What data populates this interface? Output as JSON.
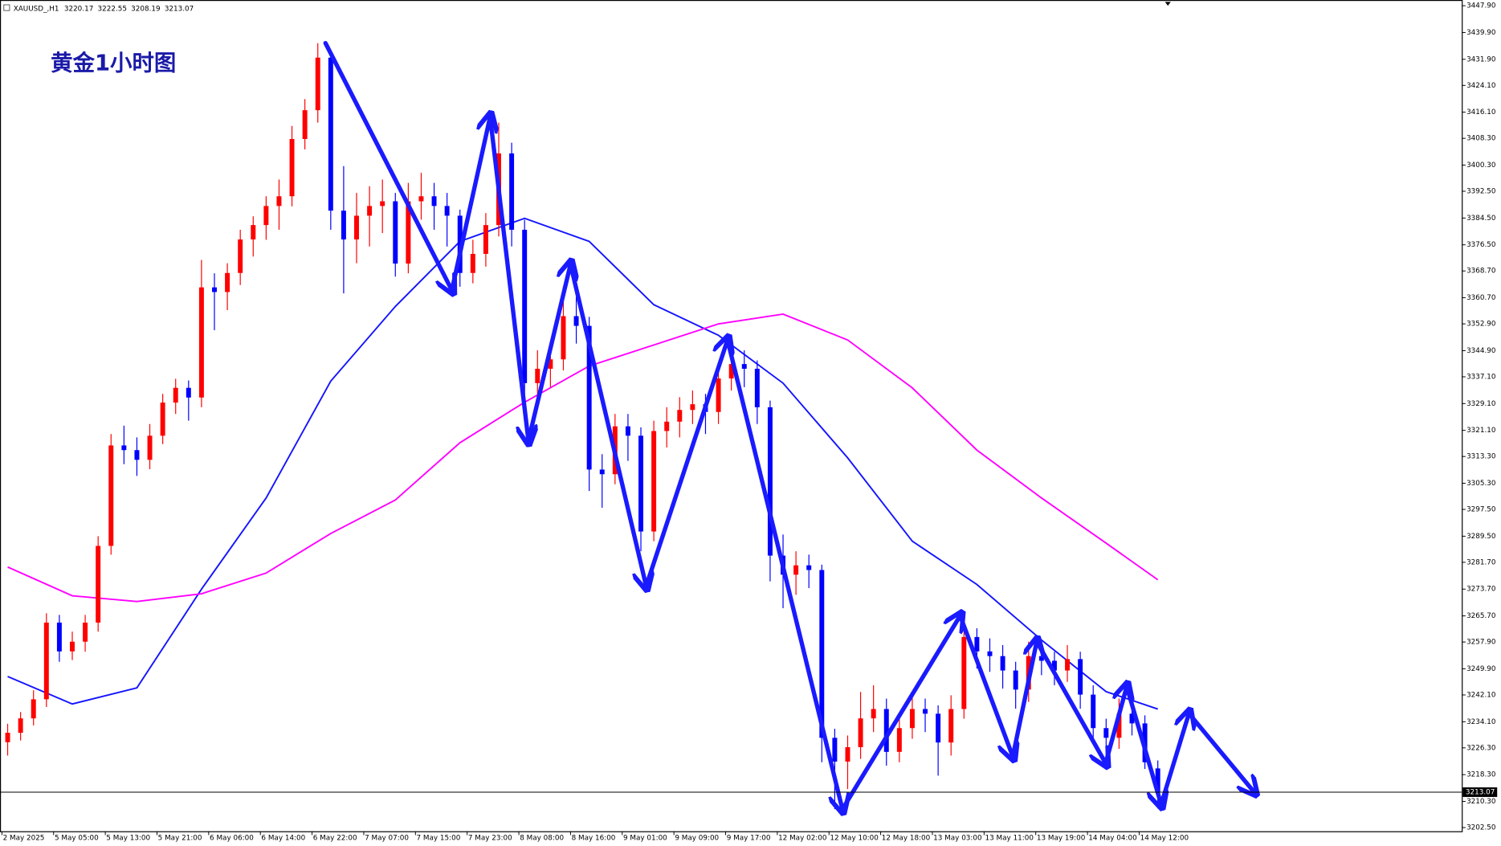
{
  "chart_data": {
    "type": "candlestick",
    "title": "黄金1小时图",
    "symbol": "XAUUSD_,H1",
    "bull_color": "#ff0000",
    "bear_color": "#0000ff",
    "ylim": [
      3201.4,
      3449.6
    ],
    "yticks": [
      {
        "value": 3447.9,
        "label": "3447.90"
      },
      {
        "value": 3439.9,
        "label": "3439.90"
      },
      {
        "value": 3431.9,
        "label": "3431.90"
      },
      {
        "value": 3424.1,
        "label": "3424.10"
      },
      {
        "value": 3416.1,
        "label": "3416.10"
      },
      {
        "value": 3408.3,
        "label": "3408.30"
      },
      {
        "value": 3400.3,
        "label": "3400.30"
      },
      {
        "value": 3392.5,
        "label": "3392.50"
      },
      {
        "value": 3384.5,
        "label": "3384.50"
      },
      {
        "value": 3376.5,
        "label": "3376.50"
      },
      {
        "value": 3368.7,
        "label": "3368.70"
      },
      {
        "value": 3360.7,
        "label": "3360.70"
      },
      {
        "value": 3352.9,
        "label": "3352.90"
      },
      {
        "value": 3344.9,
        "label": "3344.90"
      },
      {
        "value": 3337.1,
        "label": "3337.10"
      },
      {
        "value": 3329.1,
        "label": "3329.10"
      },
      {
        "value": 3321.1,
        "label": "3321.10"
      },
      {
        "value": 3313.3,
        "label": "3313.30"
      },
      {
        "value": 3305.3,
        "label": "3305.30"
      },
      {
        "value": 3297.5,
        "label": "3297.50"
      },
      {
        "value": 3289.5,
        "label": "3289.50"
      },
      {
        "value": 3281.7,
        "label": "3281.70"
      },
      {
        "value": 3273.7,
        "label": "3273.70"
      },
      {
        "value": 3265.7,
        "label": "3265.70"
      },
      {
        "value": 3257.9,
        "label": "3257.90"
      },
      {
        "value": 3249.9,
        "label": "3249.90"
      },
      {
        "value": 3242.1,
        "label": "3242.10"
      },
      {
        "value": 3234.1,
        "label": "3234.10"
      },
      {
        "value": 3226.3,
        "label": "3226.30"
      },
      {
        "value": 3218.3,
        "label": "3218.30"
      },
      {
        "value": 3210.3,
        "label": "3210.30"
      },
      {
        "value": 3202.5,
        "label": "3202.50"
      }
    ],
    "categories": [
      "2 May 2025",
      "5 May 05:00",
      "5 May 13:00",
      "5 May 21:00",
      "6 May 06:00",
      "6 May 14:00",
      "6 May 22:00",
      "7 May 07:00",
      "7 May 15:00",
      "7 May 23:00",
      "8 May 08:00",
      "8 May 16:00",
      "9 May 01:00",
      "9 May 09:00",
      "9 May 17:00",
      "12 May 02:00",
      "12 May 10:00",
      "12 May 18:00",
      "13 May 03:00",
      "13 May 11:00",
      "13 May 19:00",
      "14 May 04:00",
      "14 May 12:00"
    ],
    "candles": [
      [
        3228.0,
        3233.5,
        3224.0,
        3230.8
      ],
      [
        3230.8,
        3237.0,
        3228.5,
        3235.1
      ],
      [
        3235.1,
        3243.5,
        3233.0,
        3240.8
      ],
      [
        3240.8,
        3266.5,
        3238.5,
        3263.7
      ],
      [
        3263.7,
        3266.0,
        3252.0,
        3255.1
      ],
      [
        3255.1,
        3261.0,
        3252.5,
        3258.0
      ],
      [
        3258.0,
        3266.0,
        3255.0,
        3263.7
      ],
      [
        3263.7,
        3289.5,
        3261.0,
        3286.6
      ],
      [
        3286.6,
        3320.0,
        3284.0,
        3316.6
      ],
      [
        3316.6,
        3322.5,
        3311.0,
        3315.2
      ],
      [
        3315.2,
        3319.0,
        3307.5,
        3312.3
      ],
      [
        3312.3,
        3323.0,
        3309.5,
        3319.5
      ],
      [
        3319.5,
        3332.0,
        3317.0,
        3329.4
      ],
      [
        3329.4,
        3336.5,
        3326.0,
        3333.8
      ],
      [
        3333.8,
        3336.0,
        3324.0,
        3330.9
      ],
      [
        3330.9,
        3372.0,
        3328.0,
        3363.8
      ],
      [
        3363.8,
        3368.0,
        3351.0,
        3362.4
      ],
      [
        3362.4,
        3371.0,
        3357.0,
        3368.1
      ],
      [
        3368.1,
        3381.0,
        3364.5,
        3378.1
      ],
      [
        3378.1,
        3385.0,
        3373.0,
        3382.4
      ],
      [
        3382.4,
        3391.0,
        3378.0,
        3388.1
      ],
      [
        3388.1,
        3396.0,
        3381.0,
        3391.0
      ],
      [
        3391.0,
        3412.0,
        3388.0,
        3408.1
      ],
      [
        3408.1,
        3420.0,
        3405.0,
        3416.7
      ],
      [
        3416.7,
        3436.7,
        3413.0,
        3432.4
      ],
      [
        3432.4,
        3434.0,
        3381.0,
        3386.7
      ],
      [
        3386.7,
        3400.0,
        3362.0,
        3378.1
      ],
      [
        3378.1,
        3392.0,
        3371.0,
        3385.2
      ],
      [
        3385.2,
        3394.0,
        3376.0,
        3388.1
      ],
      [
        3388.1,
        3396.0,
        3380.0,
        3389.5
      ],
      [
        3389.5,
        3392.0,
        3367.0,
        3370.9
      ],
      [
        3370.9,
        3395.0,
        3368.0,
        3389.5
      ],
      [
        3389.5,
        3398.0,
        3384.0,
        3391.0
      ],
      [
        3391.0,
        3395.0,
        3381.0,
        3388.1
      ],
      [
        3388.1,
        3392.0,
        3376.0,
        3385.2
      ],
      [
        3385.2,
        3387.0,
        3364.0,
        3368.1
      ],
      [
        3368.1,
        3378.0,
        3365.0,
        3373.8
      ],
      [
        3373.8,
        3386.0,
        3370.0,
        3382.4
      ],
      [
        3382.4,
        3413.0,
        3379.0,
        3403.8
      ],
      [
        3403.8,
        3407.0,
        3376.0,
        3381.0
      ],
      [
        3381.0,
        3384.0,
        3325.0,
        3335.2
      ],
      [
        3335.2,
        3345.0,
        3330.0,
        3339.5
      ],
      [
        3339.5,
        3347.0,
        3334.0,
        3342.3
      ],
      [
        3342.3,
        3364.0,
        3339.0,
        3355.2
      ],
      [
        3355.2,
        3361.0,
        3347.0,
        3352.3
      ],
      [
        3352.3,
        3355.0,
        3303.0,
        3309.4
      ],
      [
        3309.4,
        3314.0,
        3298.0,
        3308.0
      ],
      [
        3308.0,
        3326.0,
        3305.0,
        3322.3
      ],
      [
        3322.3,
        3326.0,
        3312.0,
        3319.5
      ],
      [
        3319.5,
        3322.0,
        3285.0,
        3290.9
      ],
      [
        3290.9,
        3324.0,
        3288.0,
        3320.9
      ],
      [
        3320.9,
        3328.0,
        3316.0,
        3323.7
      ],
      [
        3323.7,
        3331.0,
        3319.0,
        3327.2
      ],
      [
        3327.2,
        3333.0,
        3323.0,
        3328.9
      ],
      [
        3328.9,
        3332.0,
        3320.0,
        3326.6
      ],
      [
        3326.6,
        3341.0,
        3323.0,
        3336.6
      ],
      [
        3336.6,
        3347.0,
        3333.0,
        3340.9
      ],
      [
        3340.9,
        3345.0,
        3334.0,
        3339.5
      ],
      [
        3339.5,
        3342.0,
        3323.0,
        3328.0
      ],
      [
        3328.0,
        3330.0,
        3276.0,
        3283.7
      ],
      [
        3283.7,
        3290.0,
        3268.0,
        3278.0
      ],
      [
        3278.0,
        3285.0,
        3272.0,
        3280.8
      ],
      [
        3280.8,
        3284.0,
        3274.0,
        3279.4
      ],
      [
        3279.4,
        3281.0,
        3222.0,
        3229.3
      ],
      [
        3229.3,
        3232.0,
        3208.0,
        3222.2
      ],
      [
        3222.2,
        3230.0,
        3214.0,
        3226.5
      ],
      [
        3226.5,
        3243.0,
        3223.0,
        3235.1
      ],
      [
        3235.1,
        3245.0,
        3231.0,
        3237.9
      ],
      [
        3237.9,
        3241.0,
        3221.0,
        3225.1
      ],
      [
        3225.1,
        3236.0,
        3222.0,
        3232.2
      ],
      [
        3232.2,
        3242.0,
        3229.0,
        3237.9
      ],
      [
        3237.9,
        3241.0,
        3231.0,
        3236.5
      ],
      [
        3236.5,
        3239.0,
        3218.0,
        3227.9
      ],
      [
        3227.9,
        3242.0,
        3224.0,
        3237.9
      ],
      [
        3237.9,
        3263.0,
        3235.0,
        3259.4
      ],
      [
        3259.4,
        3262.0,
        3250.0,
        3255.1
      ],
      [
        3255.1,
        3259.0,
        3249.0,
        3253.7
      ],
      [
        3253.7,
        3257.0,
        3244.0,
        3249.4
      ],
      [
        3249.4,
        3252.0,
        3238.0,
        3243.7
      ],
      [
        3243.7,
        3258.0,
        3240.0,
        3253.7
      ],
      [
        3253.7,
        3257.0,
        3248.0,
        3252.3
      ],
      [
        3252.3,
        3255.0,
        3245.0,
        3249.4
      ],
      [
        3249.4,
        3257.0,
        3246.0,
        3252.8
      ],
      [
        3252.8,
        3255.0,
        3238.0,
        3242.2
      ],
      [
        3242.2,
        3245.0,
        3228.0,
        3232.2
      ],
      [
        3232.2,
        3235.0,
        3224.0,
        3229.3
      ],
      [
        3229.3,
        3241.0,
        3226.0,
        3236.5
      ],
      [
        3236.5,
        3240.0,
        3230.0,
        3233.6
      ],
      [
        3233.6,
        3236.0,
        3220.0,
        3222.0
      ],
      [
        3220.17,
        3222.55,
        3208.19,
        3213.07
      ]
    ],
    "ma": [
      {
        "color": "#1414ff",
        "x": [
          0,
          5,
          10,
          15,
          20,
          25,
          30,
          35,
          40,
          45,
          50,
          55,
          60,
          65,
          70,
          75,
          80,
          85,
          89
        ],
        "values": [
          3247.6,
          3239.4,
          3244.2,
          3273.7,
          3300.9,
          3335.8,
          3358.1,
          3377.5,
          3384.4,
          3377.5,
          3358.6,
          3349.5,
          3335.2,
          3312.9,
          3288.0,
          3275.1,
          3258.5,
          3243.1,
          3237.9
        ]
      },
      {
        "color": "#ff00ff",
        "x": [
          0,
          5,
          10,
          15,
          20,
          25,
          30,
          35,
          40,
          45,
          50,
          55,
          60,
          65,
          70,
          75,
          80,
          85,
          89
        ],
        "values": [
          3280.3,
          3271.7,
          3270.0,
          3272.3,
          3278.5,
          3290.3,
          3300.3,
          3317.4,
          3329.5,
          3340.3,
          3346.6,
          3352.9,
          3355.8,
          3348.1,
          3333.8,
          3315.2,
          3300.9,
          3287.4,
          3276.5
        ]
      }
    ]
  }
}
